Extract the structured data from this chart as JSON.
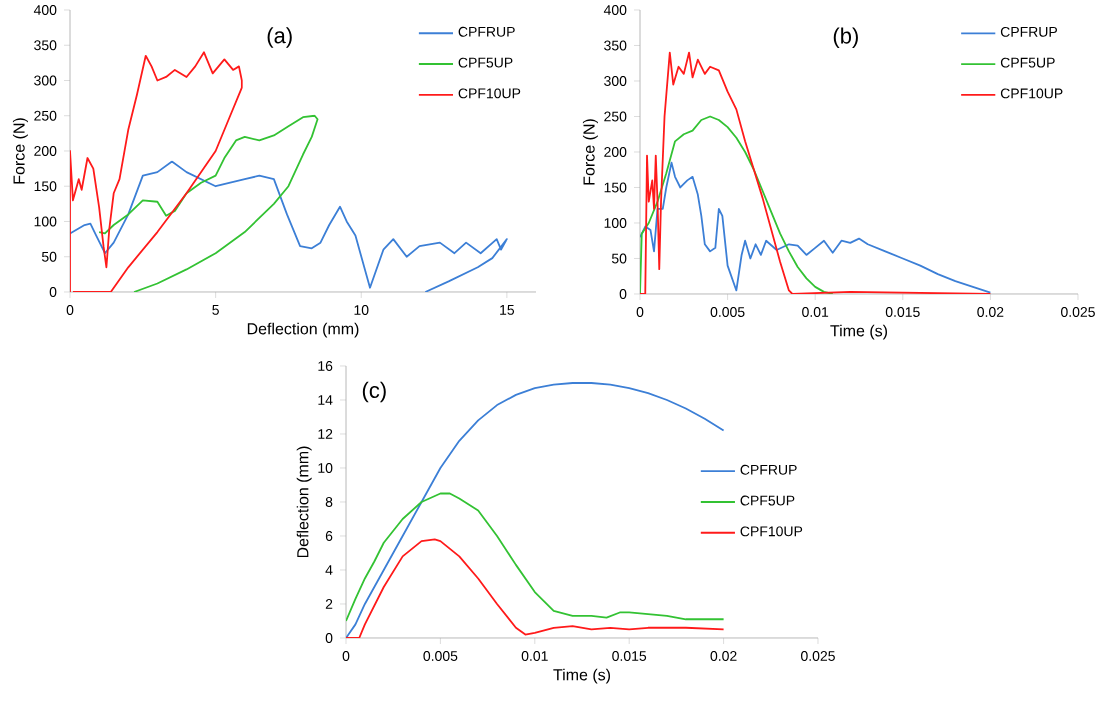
{
  "chart_data": [
    {
      "type": "line",
      "title": "(a)",
      "xlabel": "Deflection (mm)",
      "ylabel": "Force (N)",
      "xlim": [
        0,
        16
      ],
      "xticks": [
        0,
        5,
        10,
        15
      ],
      "ylim": [
        0,
        400
      ],
      "yticks": [
        0,
        50,
        100,
        150,
        200,
        250,
        300,
        350,
        400
      ],
      "legend": "top right",
      "series": [
        {
          "name": "CPFRUP",
          "color": "#3c7fd6",
          "x": [
            0,
            0.5,
            0.7,
            0.9,
            1.2,
            1.5,
            2,
            2.5,
            3,
            3.5,
            4,
            4.5,
            5,
            5.5,
            6,
            6.5,
            7,
            7.45,
            7.9,
            8.3,
            8.6,
            8.9,
            9.27,
            9.5,
            9.8,
            10.3,
            10.76,
            11.1,
            11.56,
            12,
            12.7,
            13.2,
            13.6,
            14.1,
            14.65,
            14.8,
            15,
            14.5,
            14,
            13.5,
            13,
            12.2
          ],
          "values": [
            83,
            95,
            97,
            80,
            55,
            70,
            110,
            165,
            170,
            185,
            170,
            160,
            150,
            155,
            160,
            165,
            160,
            110,
            65,
            62,
            70,
            95,
            121,
            100,
            80,
            6,
            60,
            75,
            50,
            65,
            70,
            55,
            70,
            55,
            75,
            60,
            75,
            48,
            35,
            25,
            15,
            0
          ]
        },
        {
          "name": "CPF5UP",
          "color": "#33c233",
          "x": [
            1.0,
            1.2,
            1.5,
            2,
            2.5,
            3,
            3.3,
            3.6,
            4,
            4.5,
            5,
            5.3,
            5.7,
            6,
            6.5,
            7,
            7.5,
            8,
            8.4,
            8.5,
            8.3,
            8,
            7.5,
            7,
            6,
            5,
            4,
            3,
            2.2
          ],
          "values": [
            85,
            83,
            95,
            110,
            130,
            128,
            108,
            115,
            140,
            155,
            165,
            190,
            215,
            220,
            215,
            222,
            235,
            248,
            250,
            245,
            220,
            195,
            150,
            125,
            85,
            55,
            32,
            12,
            0
          ]
        },
        {
          "name": "CPF10UP",
          "color": "#ff1a1a",
          "x": [
            0,
            0,
            0.1,
            0.3,
            0.4,
            0.6,
            0.8,
            1.0,
            1.15,
            1.25,
            1.35,
            1.5,
            1.7,
            2,
            2.3,
            2.6,
            2.8,
            3,
            3.3,
            3.6,
            4,
            4.3,
            4.6,
            4.9,
            5.3,
            5.6,
            5.8,
            5.9,
            5.9,
            5.5,
            5,
            4,
            3,
            2,
            1.4,
            0.1
          ],
          "values": [
            0,
            200,
            130,
            160,
            145,
            190,
            175,
            120,
            65,
            35,
            90,
            140,
            160,
            230,
            280,
            335,
            320,
            300,
            305,
            315,
            305,
            320,
            340,
            310,
            330,
            315,
            320,
            300,
            290,
            250,
            200,
            140,
            85,
            35,
            0,
            0
          ]
        }
      ]
    },
    {
      "type": "line",
      "title": "(b)",
      "xlabel": "Time (s)",
      "ylabel": "Force (N)",
      "xlim": [
        0,
        0.025
      ],
      "xticks": [
        0,
        0.005,
        0.01,
        0.015,
        0.02,
        0.025
      ],
      "ylim": [
        0,
        400
      ],
      "yticks": [
        0,
        50,
        100,
        150,
        200,
        250,
        300,
        350,
        400
      ],
      "legend": "top right",
      "series": [
        {
          "name": "CPFRUP",
          "color": "#3c7fd6",
          "x": [
            0,
            0.0003,
            0.0006,
            0.0008,
            0.001,
            0.0013,
            0.0015,
            0.0018,
            0.002,
            0.0023,
            0.0027,
            0.003,
            0.0033,
            0.0035,
            0.0037,
            0.004,
            0.0043,
            0.0045,
            0.0047,
            0.005,
            0.0055,
            0.0058,
            0.006,
            0.0063,
            0.0066,
            0.0069,
            0.0072,
            0.0078,
            0.0085,
            0.009,
            0.0095,
            0.01,
            0.0105,
            0.011,
            0.0115,
            0.012,
            0.0125,
            0.013,
            0.014,
            0.015,
            0.016,
            0.017,
            0.018,
            0.019,
            0.02
          ],
          "values": [
            80,
            95,
            90,
            60,
            120,
            120,
            150,
            185,
            165,
            150,
            160,
            165,
            140,
            110,
            70,
            60,
            65,
            120,
            110,
            40,
            5,
            55,
            75,
            50,
            70,
            55,
            75,
            62,
            70,
            68,
            55,
            65,
            75,
            58,
            75,
            72,
            78,
            70,
            60,
            50,
            40,
            28,
            18,
            10,
            2
          ]
        },
        {
          "name": "CPF5UP",
          "color": "#33c233",
          "x": [
            0,
            0.0001,
            0.0005,
            0.001,
            0.0015,
            0.002,
            0.0025,
            0.003,
            0.0035,
            0.004,
            0.0045,
            0.005,
            0.0055,
            0.006,
            0.0065,
            0.007,
            0.0075,
            0.008,
            0.0085,
            0.009,
            0.0095,
            0.01,
            0.0105,
            0.011
          ],
          "values": [
            0,
            85,
            100,
            130,
            170,
            215,
            225,
            230,
            245,
            250,
            245,
            235,
            220,
            200,
            175,
            145,
            115,
            85,
            60,
            38,
            22,
            10,
            3,
            0
          ]
        },
        {
          "name": "CPF10UP",
          "color": "#ff1a1a",
          "x": [
            0,
            0.0003,
            0.0004,
            0.0005,
            0.0007,
            0.0008,
            0.0009,
            0.001,
            0.0011,
            0.0012,
            0.0014,
            0.0017,
            0.0019,
            0.0022,
            0.0025,
            0.0028,
            0.003,
            0.0033,
            0.0037,
            0.004,
            0.0045,
            0.005,
            0.0055,
            0.006,
            0.0065,
            0.007,
            0.0075,
            0.008,
            0.0085,
            0.0087,
            0.012,
            0.02
          ],
          "values": [
            0,
            0,
            195,
            130,
            160,
            120,
            195,
            130,
            35,
            130,
            250,
            340,
            295,
            320,
            310,
            340,
            305,
            330,
            310,
            320,
            315,
            285,
            260,
            215,
            175,
            135,
            90,
            45,
            5,
            0,
            3,
            0
          ]
        }
      ]
    },
    {
      "type": "line",
      "title": "(c)",
      "xlabel": "Time (s)",
      "ylabel": "Deflection (mm)",
      "xlim": [
        0,
        0.025
      ],
      "xticks": [
        0,
        0.005,
        0.01,
        0.015,
        0.02,
        0.025
      ],
      "ylim": [
        0,
        16
      ],
      "yticks": [
        0,
        2,
        4,
        6,
        8,
        10,
        12,
        14,
        16
      ],
      "legend": "right",
      "series": [
        {
          "name": "CPFRUP",
          "color": "#3c7fd6",
          "x": [
            0,
            0.0005,
            0.001,
            0.002,
            0.003,
            0.004,
            0.005,
            0.006,
            0.007,
            0.008,
            0.009,
            0.01,
            0.011,
            0.012,
            0.013,
            0.014,
            0.015,
            0.016,
            0.017,
            0.018,
            0.019,
            0.02
          ],
          "values": [
            0,
            0.8,
            2,
            4,
            6,
            8,
            10,
            11.6,
            12.8,
            13.7,
            14.3,
            14.7,
            14.9,
            15,
            15,
            14.9,
            14.7,
            14.4,
            14,
            13.5,
            12.9,
            12.2
          ]
        },
        {
          "name": "CPF5UP",
          "color": "#33c233",
          "x": [
            0,
            0.0005,
            0.001,
            0.0015,
            0.002,
            0.003,
            0.004,
            0.005,
            0.0055,
            0.006,
            0.007,
            0.008,
            0.009,
            0.01,
            0.011,
            0.012,
            0.013,
            0.0138,
            0.0145,
            0.015,
            0.016,
            0.017,
            0.018,
            0.019,
            0.02
          ],
          "values": [
            1,
            2.3,
            3.5,
            4.5,
            5.6,
            7,
            8,
            8.5,
            8.5,
            8.2,
            7.5,
            6,
            4.3,
            2.7,
            1.6,
            1.3,
            1.3,
            1.2,
            1.5,
            1.5,
            1.4,
            1.3,
            1.1,
            1.1,
            1.1
          ]
        },
        {
          "name": "CPF10UP",
          "color": "#ff1a1a",
          "x": [
            0,
            0.0007,
            0.001,
            0.002,
            0.003,
            0.004,
            0.0047,
            0.005,
            0.006,
            0.007,
            0.008,
            0.009,
            0.0095,
            0.01,
            0.011,
            0.012,
            0.013,
            0.014,
            0.015,
            0.016,
            0.018,
            0.02
          ],
          "values": [
            0,
            0,
            0.8,
            3,
            4.8,
            5.7,
            5.8,
            5.7,
            4.8,
            3.5,
            2,
            0.6,
            0.2,
            0.3,
            0.6,
            0.7,
            0.5,
            0.6,
            0.5,
            0.6,
            0.6,
            0.5
          ]
        }
      ]
    }
  ]
}
